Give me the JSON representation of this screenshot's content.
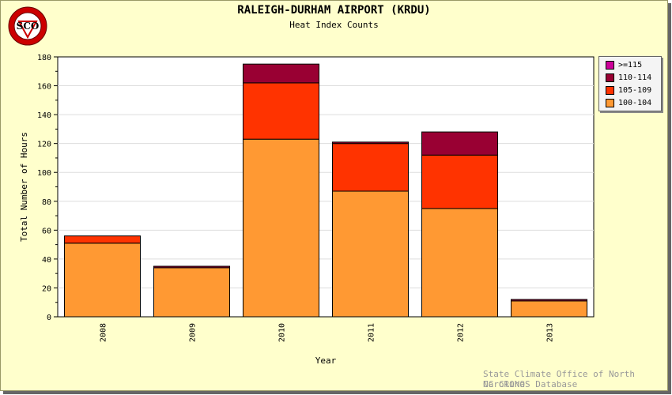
{
  "header": {
    "title": "RALEIGH-DURHAM AIRPORT (KRDU)",
    "subtitle": "Heat Index Counts"
  },
  "logo": {
    "text": "SCO",
    "icon": "state-climate-office-seal-icon",
    "colors": {
      "ring": "#cc0000",
      "inner": "#ffffff"
    }
  },
  "credits": {
    "line1": "State Climate Office of North Carolina",
    "line2": "NC CRONOS Database"
  },
  "chart_data": {
    "type": "bar",
    "stacked": true,
    "categories": [
      "2008",
      "2009",
      "2010",
      "2011",
      "2012",
      "2013"
    ],
    "series": [
      {
        "name": "100-104",
        "color": "#ff9933",
        "values": [
          51,
          34,
          123,
          87,
          75,
          11
        ]
      },
      {
        "name": "105-109",
        "color": "#ff3300",
        "values": [
          5,
          0,
          39,
          33,
          37,
          0
        ]
      },
      {
        "name": "110-114",
        "color": "#990033",
        "values": [
          0,
          1,
          13,
          1,
          16,
          1
        ]
      },
      {
        "name": ">=115",
        "color": "#cc0099",
        "values": [
          0,
          0,
          0,
          0,
          0,
          0
        ]
      }
    ],
    "legend_order": [
      ">=115",
      "110-114",
      "105-109",
      "100-104"
    ],
    "title": "RALEIGH-DURHAM AIRPORT (KRDU)",
    "xlabel": "Year",
    "ylabel": "Total Number of Hours",
    "ylim": [
      0,
      180
    ],
    "yticks": [
      0,
      20,
      40,
      60,
      80,
      100,
      120,
      140,
      160,
      180
    ],
    "grid": true,
    "legend_position": "top-right"
  }
}
